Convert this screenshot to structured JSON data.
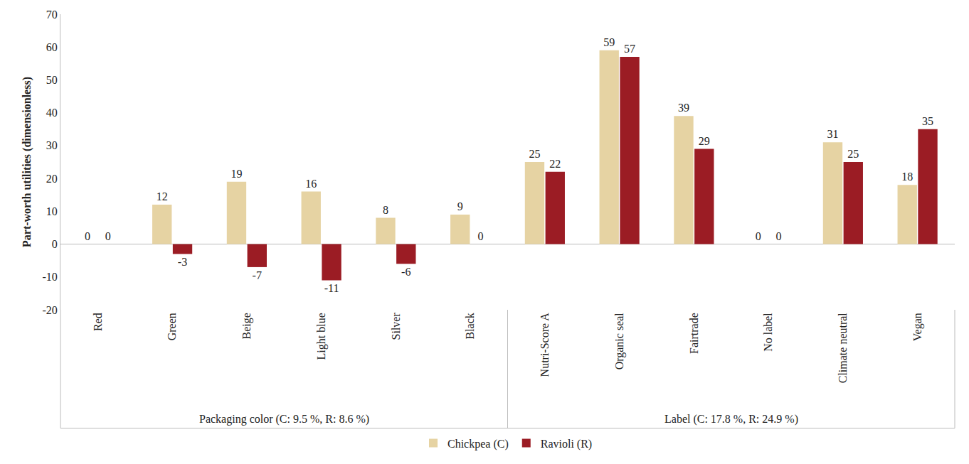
{
  "chart_data": {
    "type": "bar",
    "y_label": "Part-worth utilities (dimensionless)",
    "categories": [
      "Red",
      "Green",
      "Beige",
      "Light blue",
      "Silver",
      "Black",
      "Nutri-Score A",
      "Organic seal",
      "Fairtrade",
      "No label",
      "Climate neutral",
      "Vegan"
    ],
    "groups": [
      {
        "label": "Packaging color (C: 9.5 %, R: 8.6 %)",
        "categories": [
          "Red",
          "Green",
          "Beige",
          "Light blue",
          "Silver",
          "Black"
        ]
      },
      {
        "label": "Label (C: 17.8 %, R: 24.9 %)",
        "categories": [
          "Nutri-Score A",
          "Organic seal",
          "Fairtrade",
          "No label",
          "Climate neutral",
          "Vegan"
        ]
      }
    ],
    "series": [
      {
        "name": "Chickpea (C)",
        "color": "#e6d3a3",
        "values": [
          0,
          12,
          19,
          16,
          8,
          9,
          25,
          59,
          39,
          0,
          31,
          18
        ]
      },
      {
        "name": "Ravioli (R)",
        "color": "#9b1c24",
        "values": [
          0,
          -3,
          -7,
          -11,
          -6,
          0,
          22,
          57,
          29,
          0,
          25,
          35
        ]
      }
    ],
    "ylim": [
      -20,
      70
    ],
    "yticks": [
      -20,
      -10,
      0,
      10,
      20,
      30,
      40,
      50,
      60,
      70
    ],
    "grid": false,
    "legend": "bottom",
    "data_labels": true
  }
}
